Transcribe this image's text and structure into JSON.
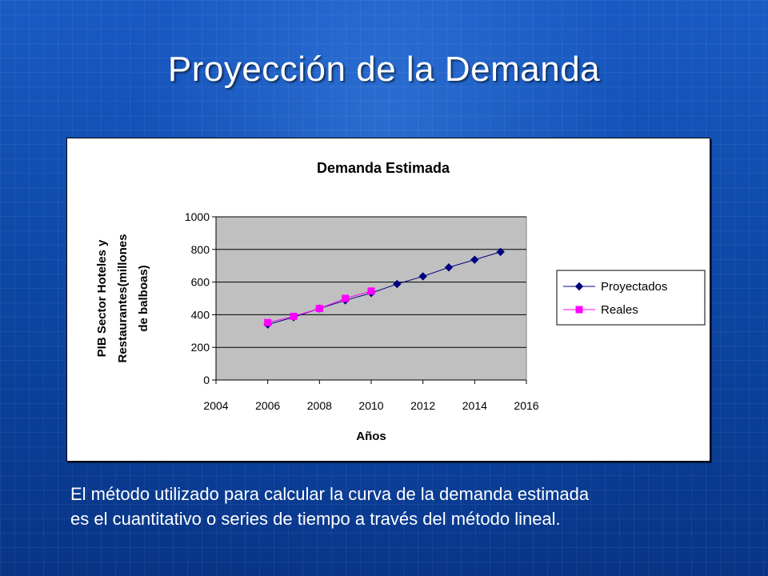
{
  "slide": {
    "title": "Proyección de la Demanda",
    "caption_lines": [
      "El método utilizado para calcular la curva de la demanda estimada",
      "es el cuantitativo o series de tiempo a través del método lineal."
    ]
  },
  "chart_data": {
    "type": "line",
    "title": "Demanda Estimada",
    "xlabel": "Años",
    "ylabel_lines": [
      "PIB Sector Hoteles y",
      "Restaurantes(millones",
      "de balboas)"
    ],
    "xlim": [
      2004,
      2016
    ],
    "ylim": [
      0,
      1000
    ],
    "x_ticks": [
      2004,
      2006,
      2008,
      2010,
      2012,
      2014,
      2016
    ],
    "y_ticks": [
      0,
      200,
      400,
      600,
      800,
      1000
    ],
    "grid": "horizontal",
    "legend_position": "right",
    "plot_background": "#c0c0c0",
    "series": [
      {
        "name": "Proyectados",
        "color": "#000080",
        "marker": "diamond",
        "x": [
          2006,
          2007,
          2008,
          2009,
          2010,
          2011,
          2012,
          2013,
          2014,
          2015
        ],
        "y": [
          340,
          385,
          438,
          488,
          533,
          588,
          635,
          690,
          737,
          785
        ]
      },
      {
        "name": "Reales",
        "color": "#ff00ff",
        "marker": "square",
        "x": [
          2006,
          2007,
          2008,
          2009,
          2010
        ],
        "y": [
          352,
          390,
          438,
          500,
          545
        ]
      }
    ]
  }
}
